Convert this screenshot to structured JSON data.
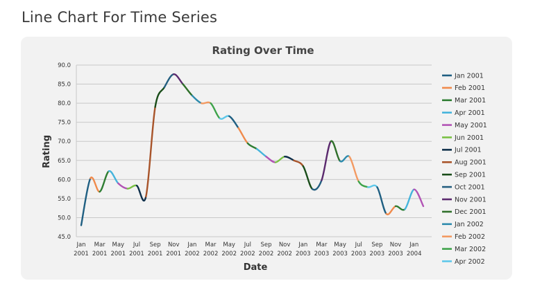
{
  "page": {
    "title": "Line Chart For Time Series"
  },
  "chart_data": {
    "type": "line",
    "title": "Rating Over Time",
    "xlabel": "Date",
    "ylabel": "Rating",
    "ylim": [
      45,
      90
    ],
    "yticks": [
      "45.0",
      "50.0",
      "55.0",
      "60.0",
      "65.0",
      "70.0",
      "75.0",
      "80.0",
      "85.0",
      "90.0"
    ],
    "xticks": [
      [
        "Jan",
        "2001"
      ],
      [
        "Mar",
        "2001"
      ],
      [
        "May",
        "2001"
      ],
      [
        "Jul",
        "2001"
      ],
      [
        "Sep",
        "2001"
      ],
      [
        "Nov",
        "2001"
      ],
      [
        "Jan",
        "2002"
      ],
      [
        "Mar",
        "2002"
      ],
      [
        "May",
        "2002"
      ],
      [
        "Jul",
        "2002"
      ],
      [
        "Sep",
        "2002"
      ],
      [
        "Nov",
        "2002"
      ],
      [
        "Jan",
        "2003"
      ],
      [
        "Mar",
        "2003"
      ],
      [
        "May",
        "2003"
      ],
      [
        "Jul",
        "2003"
      ],
      [
        "Sep",
        "2003"
      ],
      [
        "Nov",
        "2003"
      ],
      [
        "Jan",
        "2004"
      ]
    ],
    "grid": true,
    "legend_position": "right",
    "x": [
      "2001-01",
      "2001-02",
      "2001-03",
      "2001-04",
      "2001-05",
      "2001-06",
      "2001-07",
      "2001-08",
      "2001-09",
      "2001-10",
      "2001-11",
      "2001-12",
      "2002-01",
      "2002-02",
      "2002-03",
      "2002-04",
      "2002-05",
      "2002-06",
      "2002-07",
      "2002-08",
      "2002-09",
      "2002-10",
      "2002-11",
      "2002-12",
      "2003-01",
      "2003-02",
      "2003-03",
      "2003-04",
      "2003-05",
      "2003-06",
      "2003-07",
      "2003-08",
      "2003-09",
      "2003-10",
      "2003-11",
      "2003-12",
      "2004-01",
      "2004-02"
    ],
    "values": [
      48.0,
      60.3,
      56.8,
      62.2,
      59.0,
      57.6,
      58.4,
      55.5,
      79.0,
      84.2,
      87.6,
      85.0,
      82.0,
      80.0,
      80.0,
      76.0,
      76.6,
      73.5,
      69.5,
      68.0,
      66.0,
      64.5,
      66.0,
      65.0,
      63.5,
      57.5,
      59.8,
      70.0,
      64.8,
      66.0,
      59.5,
      58.0,
      58.0,
      51.0,
      53.0,
      52.2,
      57.4,
      53.0
    ],
    "series": [
      {
        "name": "Jan 2001",
        "color": "#1f5f82"
      },
      {
        "name": "Feb 2001",
        "color": "#f08a4b"
      },
      {
        "name": "Mar 2001",
        "color": "#2e7d32"
      },
      {
        "name": "Apr 2001",
        "color": "#45b4dc"
      },
      {
        "name": "May 2001",
        "color": "#b253b5"
      },
      {
        "name": "Jun 2001",
        "color": "#79c043"
      },
      {
        "name": "Jul 2001",
        "color": "#0e2f4a"
      },
      {
        "name": "Aug 2001",
        "color": "#a8542a"
      },
      {
        "name": "Sep 2001",
        "color": "#1a4d1a"
      },
      {
        "name": "Oct 2001",
        "color": "#245f80"
      },
      {
        "name": "Nov 2001",
        "color": "#5b2a6e"
      },
      {
        "name": "Dec 2001",
        "color": "#2f6f2a"
      },
      {
        "name": "Jan 2002",
        "color": "#2d8bad"
      },
      {
        "name": "Feb 2002",
        "color": "#f39a62"
      },
      {
        "name": "Mar 2002",
        "color": "#3da34a"
      },
      {
        "name": "Apr 2002",
        "color": "#5ec8ea"
      }
    ]
  }
}
